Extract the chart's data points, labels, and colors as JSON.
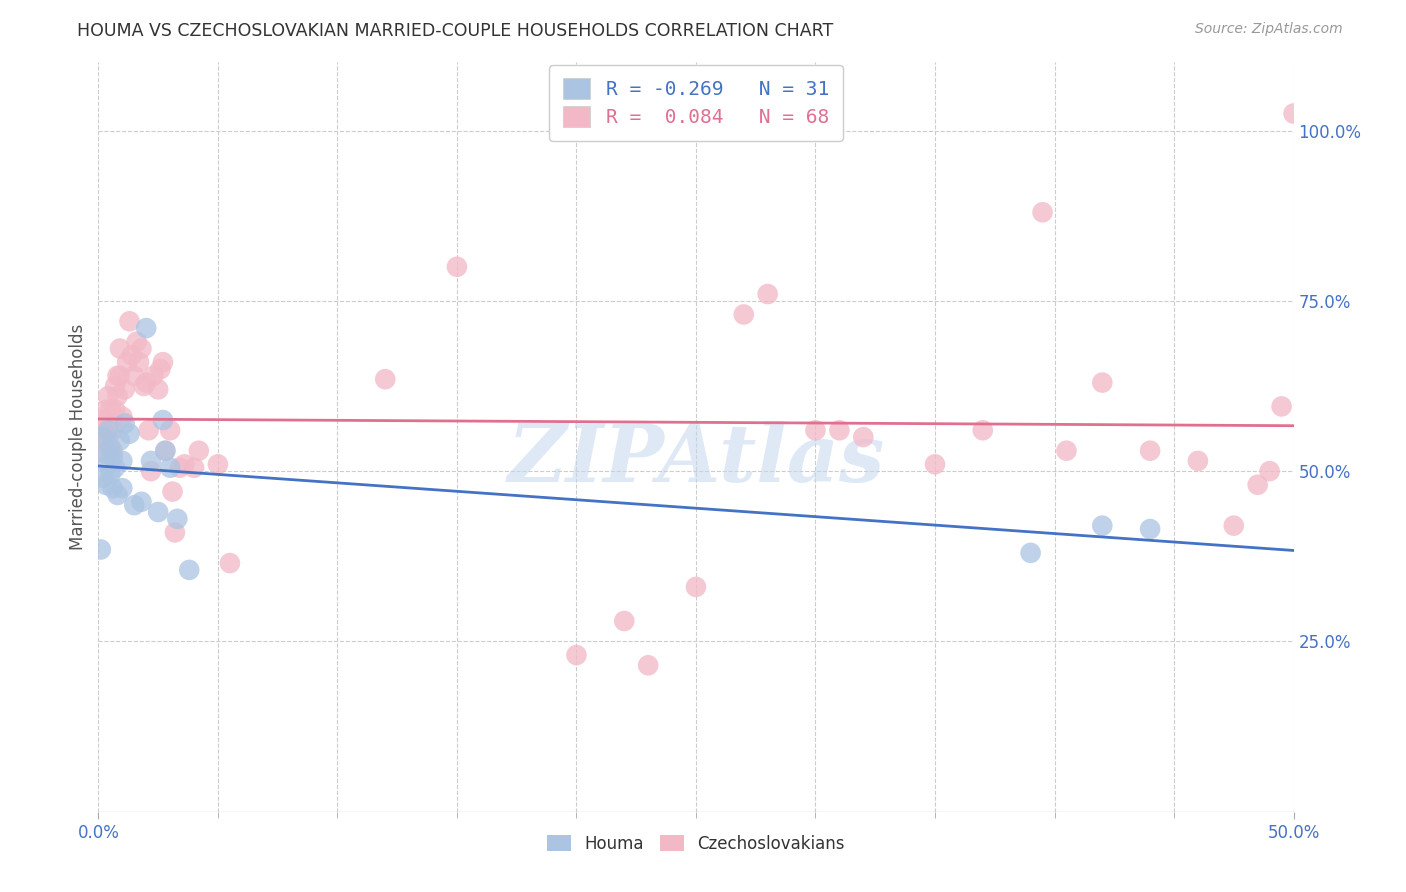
{
  "title": "HOUMA VS CZECHOSLOVAKIAN MARRIED-COUPLE HOUSEHOLDS CORRELATION CHART",
  "source": "Source: ZipAtlas.com",
  "ylabel_label": "Married-couple Households",
  "xlim": [
    0.0,
    0.5
  ],
  "ylim": [
    0.0,
    1.1
  ],
  "ytick_values": [
    0.25,
    0.5,
    0.75,
    1.0
  ],
  "ytick_labels": [
    "25.0%",
    "50.0%",
    "75.0%",
    "100.0%"
  ],
  "xtick_minor": [
    0.05,
    0.1,
    0.15,
    0.2,
    0.25,
    0.3,
    0.35,
    0.4,
    0.45
  ],
  "houma_color": "#aac4e2",
  "czech_color": "#f2b8c6",
  "houma_line_color": "#4472c4",
  "czech_line_color": "#e07090",
  "houma_R": -0.269,
  "houma_N": 31,
  "czech_R": 0.084,
  "czech_N": 68,
  "legend_label_houma": "Houma",
  "legend_label_czech": "Czechoslovakians",
  "watermark": "ZIPAtlas",
  "background_color": "#ffffff",
  "grid_color": "#cccccc",
  "houma_x": [
    0.001,
    0.002,
    0.002,
    0.003,
    0.003,
    0.004,
    0.004,
    0.005,
    0.005,
    0.006,
    0.006,
    0.007,
    0.008,
    0.009,
    0.01,
    0.01,
    0.011,
    0.013,
    0.015,
    0.018,
    0.02,
    0.022,
    0.025,
    0.027,
    0.028,
    0.03,
    0.033,
    0.038,
    0.39,
    0.42,
    0.44
  ],
  "houma_y": [
    0.385,
    0.55,
    0.49,
    0.525,
    0.48,
    0.56,
    0.51,
    0.535,
    0.495,
    0.52,
    0.475,
    0.505,
    0.465,
    0.545,
    0.515,
    0.475,
    0.57,
    0.555,
    0.45,
    0.455,
    0.71,
    0.515,
    0.44,
    0.575,
    0.53,
    0.505,
    0.43,
    0.355,
    0.38,
    0.42,
    0.415
  ],
  "czech_x": [
    0.001,
    0.001,
    0.002,
    0.002,
    0.003,
    0.003,
    0.004,
    0.004,
    0.005,
    0.005,
    0.006,
    0.006,
    0.007,
    0.007,
    0.008,
    0.008,
    0.009,
    0.009,
    0.01,
    0.011,
    0.012,
    0.013,
    0.014,
    0.015,
    0.016,
    0.017,
    0.018,
    0.019,
    0.02,
    0.021,
    0.022,
    0.023,
    0.025,
    0.026,
    0.027,
    0.028,
    0.03,
    0.031,
    0.032,
    0.034,
    0.036,
    0.04,
    0.042,
    0.05,
    0.055,
    0.12,
    0.15,
    0.2,
    0.22,
    0.23,
    0.25,
    0.27,
    0.28,
    0.3,
    0.31,
    0.32,
    0.35,
    0.37,
    0.395,
    0.405,
    0.42,
    0.44,
    0.46,
    0.475,
    0.485,
    0.49,
    0.495,
    0.5
  ],
  "czech_y": [
    0.56,
    0.53,
    0.545,
    0.575,
    0.555,
    0.59,
    0.55,
    0.61,
    0.53,
    0.59,
    0.56,
    0.53,
    0.625,
    0.59,
    0.64,
    0.61,
    0.68,
    0.64,
    0.58,
    0.62,
    0.66,
    0.72,
    0.67,
    0.64,
    0.69,
    0.66,
    0.68,
    0.625,
    0.63,
    0.56,
    0.5,
    0.64,
    0.62,
    0.65,
    0.66,
    0.53,
    0.56,
    0.47,
    0.41,
    0.505,
    0.51,
    0.505,
    0.53,
    0.51,
    0.365,
    0.635,
    0.8,
    0.23,
    0.28,
    0.215,
    0.33,
    0.73,
    0.76,
    0.56,
    0.56,
    0.55,
    0.51,
    0.56,
    0.88,
    0.53,
    0.63,
    0.53,
    0.515,
    0.42,
    0.48,
    0.5,
    0.595,
    1.025
  ]
}
